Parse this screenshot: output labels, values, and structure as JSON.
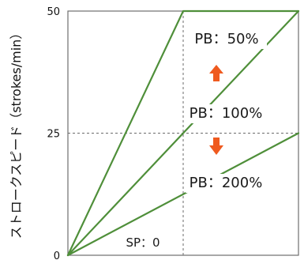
{
  "chart_data": {
    "type": "line",
    "y_ticks": [
      "0",
      "25",
      "50"
    ],
    "ylabel": "ストロークスピード（strokes/min）",
    "ylim": [
      0,
      50
    ],
    "grid": "dashed reference lines at y=25 and at the middle of the x-range",
    "series": [
      {
        "name": "PB：50%",
        "points": [
          [
            0,
            0
          ],
          [
            1,
            50
          ],
          [
            2,
            50
          ]
        ],
        "color": "#4f8f3a"
      },
      {
        "name": "PB：100%",
        "points": [
          [
            0,
            0
          ],
          [
            2,
            50
          ]
        ],
        "color": "#4f8f3a"
      },
      {
        "name": "PB：200%",
        "points": [
          [
            0,
            0
          ],
          [
            2,
            25
          ]
        ],
        "color": "#4f8f3a"
      }
    ],
    "annotations": [
      {
        "text": "PB：50%",
        "anchor": "upper-middle"
      },
      {
        "text": "PB：100%",
        "anchor": "middle-right"
      },
      {
        "text": "PB：200%",
        "anchor": "lower-right"
      },
      {
        "text": "SP：0",
        "anchor": "bottom-left"
      }
    ],
    "arrows": [
      {
        "direction": "up",
        "color": "#ef5a1f"
      },
      {
        "direction": "down",
        "color": "#ef5a1f"
      }
    ]
  }
}
